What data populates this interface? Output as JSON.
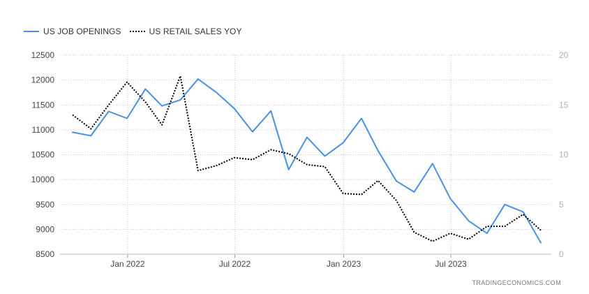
{
  "legend": {
    "job_openings_label": "US JOB OPENINGS",
    "retail_sales_label": "US RETAIL SALES YOY"
  },
  "source": "TRADINGECONOMICS.COM",
  "colors": {
    "job_openings": "#4a90e2",
    "retail_sales": "#000000",
    "grid": "#cccccc"
  },
  "chart_data": {
    "type": "line",
    "x": [
      "2021-09-30",
      "2021-10-31",
      "2021-11-30",
      "2021-12-31",
      "2022-01-31",
      "2022-02-28",
      "2022-03-31",
      "2022-04-30",
      "2022-05-31",
      "2022-06-30",
      "2022-07-31",
      "2022-08-31",
      "2022-09-30",
      "2022-10-31",
      "2022-11-30",
      "2022-12-31",
      "2023-01-31",
      "2023-02-28",
      "2023-03-31",
      "2023-04-30",
      "2023-05-31",
      "2023-06-30",
      "2023-07-31",
      "2023-08-31",
      "2023-09-30",
      "2023-10-31",
      "2023-11-30"
    ],
    "x_ticks": [
      "Jan 2022",
      "Jul 2022",
      "Jan 2023",
      "Jul 2023"
    ],
    "x_tick_dates": [
      "2022-01-01",
      "2022-07-01",
      "2023-01-01",
      "2023-07-01"
    ],
    "series": [
      {
        "name": "US JOB OPENINGS",
        "axis": "left",
        "style": "solid",
        "values": [
          10950,
          10880,
          11370,
          11230,
          11820,
          11480,
          11600,
          12020,
          11750,
          11430,
          10960,
          11380,
          10200,
          10850,
          10470,
          10740,
          11230,
          10580,
          9970,
          9750,
          10320,
          9620,
          9170,
          8920,
          9500,
          9350,
          8730
        ]
      },
      {
        "name": "US RETAIL SALES YOY",
        "axis": "right",
        "style": "dotted",
        "values": [
          14.0,
          12.6,
          15.0,
          17.3,
          15.3,
          13.0,
          17.9,
          8.4,
          8.9,
          9.7,
          9.5,
          10.5,
          10.1,
          9.0,
          8.8,
          6.1,
          6.0,
          7.4,
          5.4,
          2.2,
          1.3,
          2.1,
          1.5,
          2.8,
          2.8,
          4.0,
          2.4
        ]
      }
    ],
    "y_left": {
      "min": 8500,
      "max": 12500,
      "ticks": [
        8500,
        9000,
        9500,
        10000,
        10500,
        11000,
        11500,
        12000,
        12500
      ]
    },
    "y_right": {
      "min": 0,
      "max": 20,
      "ticks": [
        0,
        5,
        10,
        15,
        20
      ]
    },
    "grid": true,
    "legend_position": "top-left"
  }
}
